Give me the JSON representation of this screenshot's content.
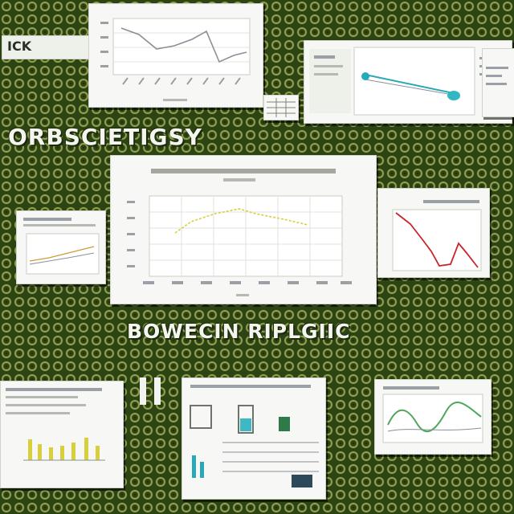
{
  "headlines": {
    "top": "ORBSCIETIGSY",
    "middle": "BOWECIN RIPLGIIC"
  },
  "corner_tag": "ICK",
  "colors": {
    "background": "#2c4414",
    "pattern_ring": "#8e9a4c",
    "card": "#f7f8f5",
    "line_grey": "#8a8f98",
    "line_yellow": "#d8cf3a",
    "line_red": "#c8262c",
    "line_green": "#4fa85a",
    "line_teal": "#27a9b8"
  }
}
